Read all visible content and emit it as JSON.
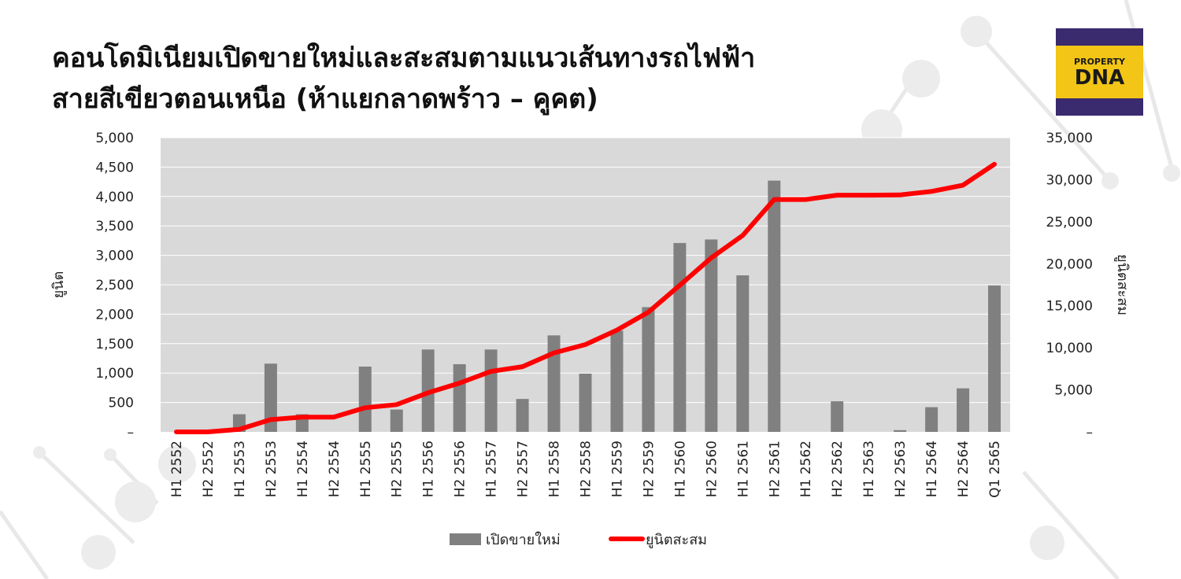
{
  "title_line1": "คอนโดมิเนียมเปิดขายใหม่และสะสมตามแนวเส้นทางรถไฟฟ้า",
  "title_line2": "สายสีเขียวตอนเหนือ (ห้าแยกลาดพร้าว – คูคต)",
  "logo": {
    "line1": "PROPERTY",
    "line2": "DNA",
    "colors": {
      "background": "#f2c516",
      "strip": "#3a2a6e"
    }
  },
  "colors": {
    "bar": "#808080",
    "line": "#ff0000",
    "plot_bg": "#d9d9d9",
    "gridline": "#ffffff"
  },
  "chart_data": {
    "type": "bar+line",
    "title": "คอนโดมิเนียมเปิดขายใหม่และสะสมตามแนวเส้นทางรถไฟฟ้า สายสีเขียวตอนเหนือ (ห้าแยกลาดพร้าว – คูคต)",
    "categories": [
      "H1 2552",
      "H2 2552",
      "H1 2553",
      "H2 2553",
      "H1 2554",
      "H2 2554",
      "H1 2555",
      "H2 2555",
      "H1 2556",
      "H2 2556",
      "H1 2557",
      "H2 2557",
      "H1 2558",
      "H2 2558",
      "H1 2559",
      "H2 2559",
      "H1 2560",
      "H2 2560",
      "H1 2561",
      "H2 2561",
      "H1 2562",
      "H2 2562",
      "H1 2563",
      "H2 2563",
      "H1 2564",
      "H2 2564",
      "Q1 2565"
    ],
    "ylabel": "ยูนิต",
    "y2label": "ยูนิตสะสม",
    "ylim": [
      0,
      5000
    ],
    "y2lim": [
      0,
      35000
    ],
    "yticks": [
      "–",
      "500",
      "1,000",
      "1,500",
      "2,000",
      "2,500",
      "3,000",
      "3,500",
      "4,000",
      "4,500",
      "5,000"
    ],
    "y2ticks": [
      "–",
      "5,000",
      "10,000",
      "15,000",
      "20,000",
      "25,000",
      "30,000",
      "35,000"
    ],
    "grid": true,
    "legend_position": "bottom",
    "series": [
      {
        "name": "เปิดขายใหม่",
        "type": "bar",
        "axis": "left",
        "values": [
          0,
          0,
          300,
          1160,
          300,
          0,
          1110,
          380,
          1400,
          1150,
          1400,
          560,
          1640,
          990,
          1720,
          2120,
          3210,
          3270,
          2660,
          4270,
          0,
          520,
          0,
          30,
          420,
          740,
          2490
        ]
      },
      {
        "name": "ยูนิตสะสม",
        "type": "line",
        "axis": "right",
        "values": [
          0,
          0,
          300,
          1460,
          1760,
          1760,
          2870,
          3250,
          4650,
          5800,
          7200,
          7760,
          9400,
          10390,
          12110,
          14230,
          17440,
          20710,
          23370,
          27640,
          27640,
          28160,
          28160,
          28190,
          28610,
          29350,
          31840
        ]
      }
    ]
  }
}
